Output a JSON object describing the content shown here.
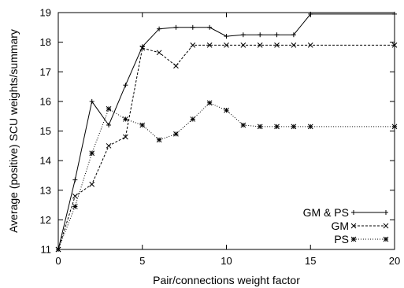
{
  "chart_data": {
    "type": "line",
    "xlabel": "Pair/connections weight factor",
    "ylabel": "Average (positive) SCU weights/summary",
    "xlim": [
      0,
      20
    ],
    "ylim": [
      11,
      19
    ],
    "x_ticks": [
      "0",
      "5",
      "10",
      "15",
      "20"
    ],
    "y_ticks": [
      "11",
      "12",
      "13",
      "14",
      "15",
      "16",
      "17",
      "18",
      "19"
    ],
    "grid": false,
    "legend_position": "bottom-right",
    "series": [
      {
        "name": "GM & PS",
        "line_style": "solid",
        "marker": "plus",
        "color": "#000000",
        "points": [
          [
            0,
            11.0
          ],
          [
            1,
            13.35
          ],
          [
            2,
            16.0
          ],
          [
            3,
            15.2
          ],
          [
            4,
            16.55
          ],
          [
            5,
            17.85
          ],
          [
            6,
            18.45
          ],
          [
            7,
            18.5
          ],
          [
            8,
            18.5
          ],
          [
            9,
            18.5
          ],
          [
            10,
            18.2
          ],
          [
            11,
            18.25
          ],
          [
            12,
            18.25
          ],
          [
            13,
            18.25
          ],
          [
            14,
            18.25
          ],
          [
            15,
            18.95
          ],
          [
            20,
            18.95
          ]
        ]
      },
      {
        "name": "GM",
        "line_style": "dashed",
        "marker": "x",
        "color": "#000000",
        "points": [
          [
            0,
            11.0
          ],
          [
            1,
            12.8
          ],
          [
            2,
            13.2
          ],
          [
            3,
            14.5
          ],
          [
            4,
            14.8
          ],
          [
            5,
            17.8
          ],
          [
            6,
            17.65
          ],
          [
            7,
            17.2
          ],
          [
            8,
            17.9
          ],
          [
            9,
            17.9
          ],
          [
            10,
            17.9
          ],
          [
            11,
            17.9
          ],
          [
            12,
            17.9
          ],
          [
            13,
            17.9
          ],
          [
            14,
            17.9
          ],
          [
            15,
            17.9
          ],
          [
            20,
            17.9
          ]
        ]
      },
      {
        "name": "PS",
        "line_style": "dotted",
        "marker": "star",
        "color": "#000000",
        "points": [
          [
            0,
            11.0
          ],
          [
            1,
            12.45
          ],
          [
            2,
            14.25
          ],
          [
            3,
            15.75
          ],
          [
            4,
            15.4
          ],
          [
            5,
            15.2
          ],
          [
            6,
            14.7
          ],
          [
            7,
            14.9
          ],
          [
            8,
            15.4
          ],
          [
            9,
            15.95
          ],
          [
            10,
            15.7
          ],
          [
            11,
            15.2
          ],
          [
            12,
            15.15
          ],
          [
            13,
            15.15
          ],
          [
            14,
            15.15
          ],
          [
            15,
            15.15
          ],
          [
            20,
            15.15
          ]
        ]
      }
    ]
  }
}
